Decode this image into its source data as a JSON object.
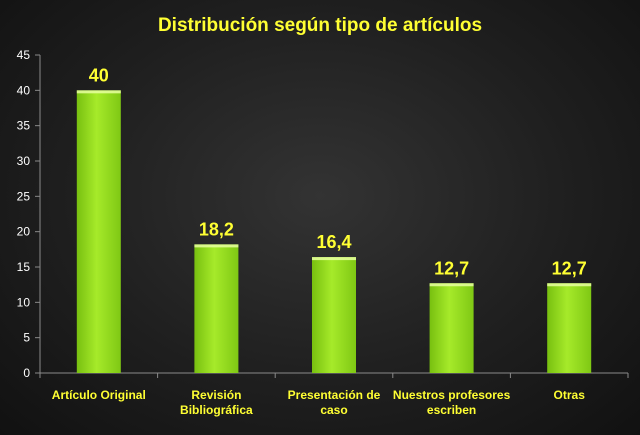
{
  "chart_data": {
    "type": "bar",
    "title": "Distribución según tipo de artículos",
    "categories": [
      [
        "Artículo Original"
      ],
      [
        "Revisión",
        "Bibliográfica"
      ],
      [
        "Presentación de",
        "caso"
      ],
      [
        "Nuestros profesores",
        "escriben"
      ],
      [
        "Otras"
      ]
    ],
    "values": [
      40,
      18.2,
      16.4,
      12.7,
      12.7
    ],
    "data_labels": [
      "40",
      "18,2",
      "16,4",
      "12,7",
      "12,7"
    ],
    "y_ticks": [
      "0",
      "5",
      "10",
      "15",
      "20",
      "25",
      "30",
      "35",
      "40",
      "45"
    ],
    "ylim": [
      0,
      45
    ],
    "grid": false,
    "legend": "none",
    "colors": {
      "bar": "#8cd617",
      "bar_highlight": "#b6f03c",
      "bar_top": "#e8ffa0",
      "text": "#ffff33",
      "tick_text": "#ffffff",
      "axis": "#8a8a8a"
    }
  }
}
